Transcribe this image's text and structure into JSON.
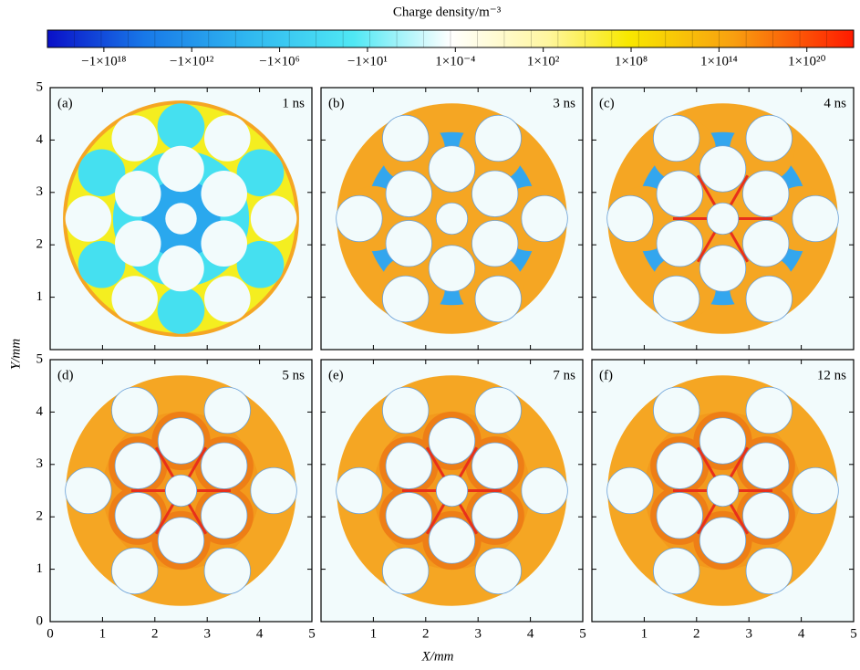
{
  "chart_data": {
    "type": "contour-panels",
    "colorbar": {
      "title": "Charge density/m⁻³",
      "labels": [
        "−1×10¹⁸",
        "−1×10¹²",
        "−1×10⁶",
        "−1×10¹",
        "1×10⁻⁴",
        "1×10²",
        "1×10⁸",
        "1×10¹⁴",
        "1×10²⁰"
      ]
    },
    "x_label": "X/mm",
    "y_label": "Y/mm",
    "xlim": [
      0,
      5
    ],
    "ylim": [
      0,
      5
    ],
    "xticks": [
      0,
      1,
      2,
      3,
      4,
      5
    ],
    "yticks": [
      0,
      1,
      2,
      3,
      4,
      5
    ],
    "panels": [
      {
        "label": "(a)",
        "time": "1 ns"
      },
      {
        "label": "(b)",
        "time": "3 ns"
      },
      {
        "label": "(c)",
        "time": "4 ns"
      },
      {
        "label": "(d)",
        "time": "5 ns"
      },
      {
        "label": "(e)",
        "time": "7 ns"
      },
      {
        "label": "(f)",
        "time": "12 ns"
      }
    ]
  }
}
